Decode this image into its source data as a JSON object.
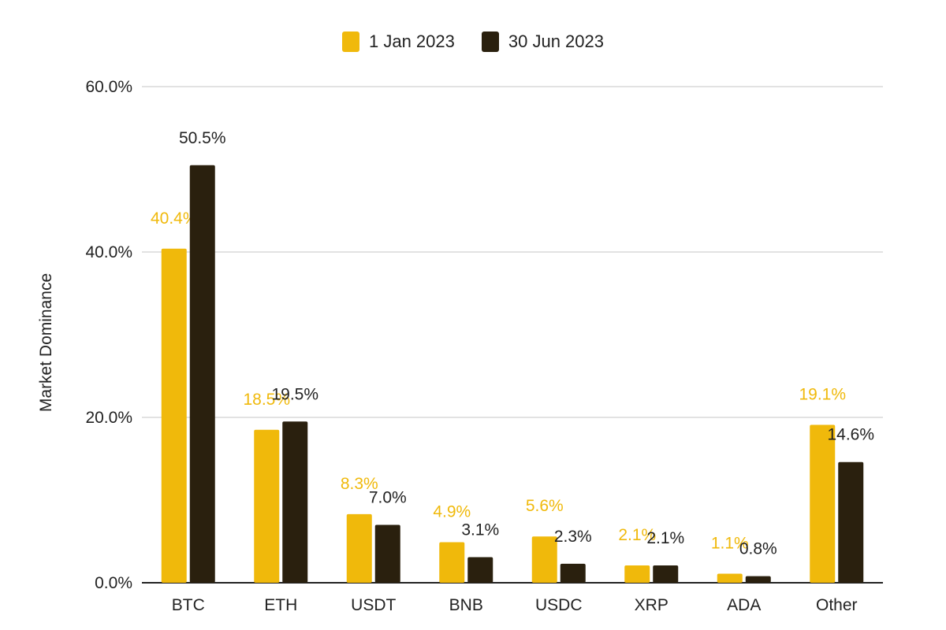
{
  "colors": {
    "series1": "#F0B90B",
    "series2": "#2A200E",
    "grid": "#D9D9D9",
    "axis": "#222222",
    "text": "#222222"
  },
  "chart_data": {
    "type": "bar",
    "title": "",
    "xlabel": "",
    "ylabel": "Market Dominance",
    "ylim": [
      0,
      60
    ],
    "yticks": [
      0,
      20,
      40,
      60
    ],
    "ytick_labels": [
      "0.0%",
      "20.0%",
      "40.0%",
      "60.0%"
    ],
    "grid": true,
    "legend_position": "top-center",
    "categories": [
      "BTC",
      "ETH",
      "USDT",
      "BNB",
      "USDC",
      "XRP",
      "ADA",
      "Other"
    ],
    "series": [
      {
        "name": "1 Jan 2023",
        "color": "#F0B90B",
        "values": [
          40.4,
          18.5,
          8.3,
          4.9,
          5.6,
          2.1,
          1.1,
          19.1
        ],
        "labels": [
          "40.4%",
          "18.5%",
          "8.3%",
          "4.9%",
          "5.6%",
          "2.1%",
          "1.1%",
          "19.1%"
        ]
      },
      {
        "name": "30 Jun 2023",
        "color": "#2A200E",
        "values": [
          50.5,
          19.5,
          7.0,
          3.1,
          2.3,
          2.1,
          0.8,
          14.6
        ],
        "labels": [
          "50.5%",
          "19.5%",
          "7.0%",
          "3.1%",
          "2.3%",
          "2.1%",
          "0.8%",
          "14.6%"
        ]
      }
    ]
  }
}
